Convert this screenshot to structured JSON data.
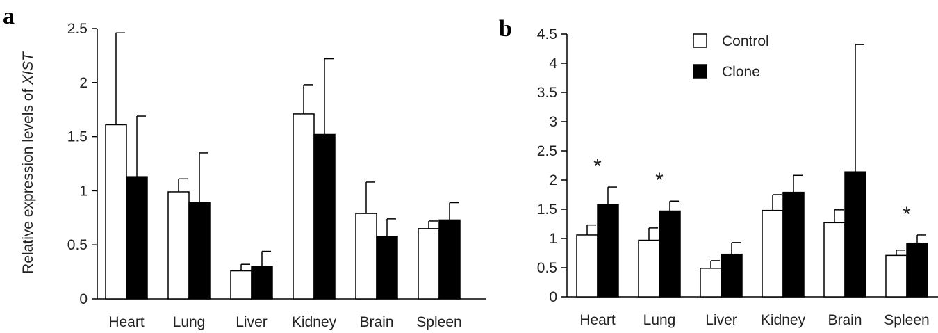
{
  "colors": {
    "control": "#ffffff",
    "clone": "#000000",
    "stroke": "#000000"
  },
  "chart_data": [
    {
      "panel": "a",
      "type": "bar",
      "ylabel_prefix": "Relative expression levels of ",
      "ylabel_gene": "XIST",
      "ylim": [
        0,
        2.5
      ],
      "yticks": [
        "0",
        "0.5",
        "1",
        "1.5",
        "2",
        "2.5"
      ],
      "ytick_values": [
        0,
        0.5,
        1,
        1.5,
        2,
        2.5
      ],
      "categories": [
        "Heart",
        "Lung",
        "Liver",
        "Kidney",
        "Brain",
        "Spleen"
      ],
      "series": [
        {
          "key": "control",
          "values": [
            1.61,
            0.99,
            0.26,
            1.71,
            0.79,
            0.65
          ],
          "errors": [
            0.85,
            0.12,
            0.06,
            0.27,
            0.29,
            0.07
          ]
        },
        {
          "key": "clone",
          "values": [
            1.13,
            0.89,
            0.3,
            1.52,
            0.58,
            0.73
          ],
          "errors": [
            0.56,
            0.46,
            0.14,
            0.7,
            0.16,
            0.16
          ]
        }
      ],
      "significance": []
    },
    {
      "panel": "b",
      "type": "bar",
      "ylim": [
        0,
        4.5
      ],
      "yticks": [
        "0",
        "0.5",
        "1",
        "1.5",
        "2",
        "2.5",
        "3",
        "3.5",
        "4",
        "4.5"
      ],
      "ytick_values": [
        0,
        0.5,
        1,
        1.5,
        2,
        2.5,
        3,
        3.5,
        4,
        4.5
      ],
      "categories": [
        "Heart",
        "Lung",
        "Liver",
        "Kidney",
        "Brain",
        "Spleen"
      ],
      "series": [
        {
          "name": "Control",
          "key": "control",
          "values": [
            1.06,
            0.97,
            0.49,
            1.48,
            1.27,
            0.71
          ],
          "errors": [
            0.17,
            0.21,
            0.13,
            0.27,
            0.22,
            0.09
          ]
        },
        {
          "name": "Clone",
          "key": "clone",
          "values": [
            1.58,
            1.47,
            0.73,
            1.79,
            2.14,
            0.92
          ],
          "errors": [
            0.3,
            0.17,
            0.2,
            0.29,
            2.18,
            0.14
          ]
        }
      ],
      "significance": [
        {
          "category": "Heart",
          "mark": "*"
        },
        {
          "category": "Lung",
          "mark": "*"
        },
        {
          "category": "Spleen",
          "mark": "*"
        }
      ],
      "legend": {
        "position": "top",
        "labels": [
          "Control",
          "Clone"
        ]
      }
    }
  ]
}
